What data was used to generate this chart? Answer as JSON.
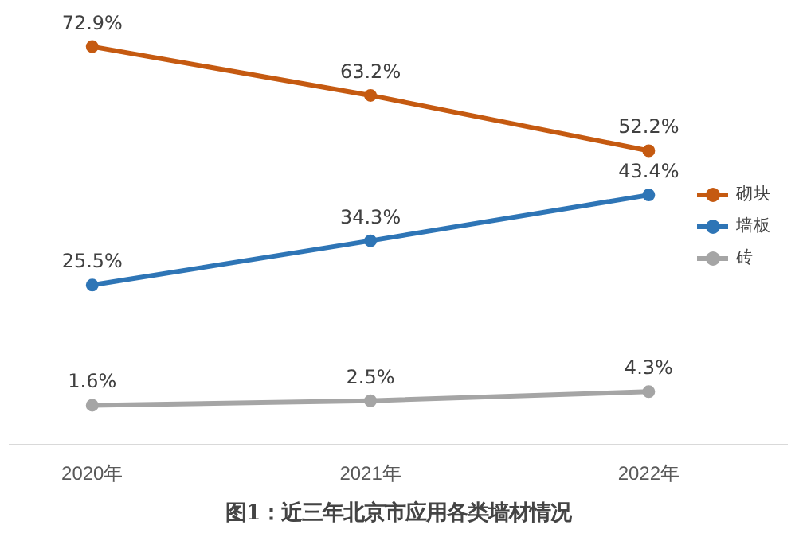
{
  "chart_data": {
    "type": "line",
    "title": "图1：近三年北京市应用各类墙材情况",
    "categories": [
      "2020年",
      "2021年",
      "2022年"
    ],
    "series": [
      {
        "name": "砌块",
        "color": "#c55a11",
        "values": [
          72.9,
          63.2,
          52.2
        ],
        "value_labels": [
          "72.9%",
          "63.2%",
          "52.2%"
        ]
      },
      {
        "name": "墙板",
        "color": "#2e75b6",
        "values": [
          25.5,
          34.3,
          43.4
        ],
        "value_labels": [
          "25.5%",
          "34.3%",
          "43.4%"
        ]
      },
      {
        "name": "砖",
        "color": "#a5a5a5",
        "values": [
          1.6,
          2.5,
          4.3
        ],
        "value_labels": [
          "1.6%",
          "2.5%",
          "4.3%"
        ]
      }
    ],
    "tick_labels": "x",
    "grid": false,
    "legend": "right",
    "marker": "circle",
    "line_style": "solid"
  }
}
